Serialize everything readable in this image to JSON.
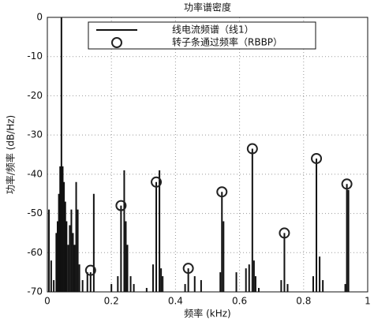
{
  "chart_data": {
    "type": "stem",
    "title": "功率谱密度",
    "xlabel": "频率 (kHz)",
    "ylabel": "功率/频率 (dB/Hz)",
    "xlim": [
      0,
      1
    ],
    "xticks": [
      0,
      0.2,
      0.4,
      0.6,
      0.8,
      1
    ],
    "ylim": [
      -70,
      0
    ],
    "yticks": [
      0,
      -10,
      -20,
      -30,
      -40,
      -50,
      -60,
      -70
    ],
    "grid": true,
    "series": [
      {
        "name": "线电流频谱（线1）",
        "color": "#111111",
        "x": [
          0.005,
          0.012,
          0.02,
          0.028,
          0.032,
          0.036,
          0.04,
          0.044,
          0.048,
          0.052,
          0.056,
          0.06,
          0.065,
          0.07,
          0.075,
          0.08,
          0.085,
          0.09,
          0.095,
          0.1,
          0.11,
          0.125,
          0.135,
          0.145,
          0.2,
          0.22,
          0.23,
          0.24,
          0.245,
          0.25,
          0.26,
          0.27,
          0.31,
          0.33,
          0.34,
          0.35,
          0.355,
          0.36,
          0.43,
          0.44,
          0.46,
          0.48,
          0.54,
          0.545,
          0.55,
          0.59,
          0.62,
          0.63,
          0.64,
          0.645,
          0.65,
          0.66,
          0.73,
          0.74,
          0.75,
          0.83,
          0.84,
          0.85,
          0.86,
          0.93,
          0.935,
          0.94
        ],
        "values": [
          -49,
          -62,
          -67,
          -55,
          -52,
          -45,
          -38,
          0,
          -38,
          -42,
          -47,
          -52,
          -58,
          -53,
          -49,
          -55,
          -58,
          -42,
          -49,
          -63,
          -67,
          -65,
          -65,
          -45,
          -68,
          -66,
          -48,
          -39,
          -52,
          -58,
          -66,
          -68,
          -69,
          -63,
          -42,
          -39,
          -64,
          -66,
          -68,
          -64,
          -66,
          -67,
          -65,
          -44.5,
          -52,
          -65,
          -64,
          -63,
          -33.5,
          -62,
          -66,
          -69,
          -67,
          -55,
          -68,
          -66,
          -36,
          -61,
          -67,
          -68,
          -42.5,
          -44
        ]
      },
      {
        "name": "转子条通过频率（RBBP）",
        "color": "#222222",
        "marker": "circle",
        "x": [
          0.135,
          0.23,
          0.34,
          0.44,
          0.545,
          0.64,
          0.74,
          0.84,
          0.935
        ],
        "values": [
          -64.5,
          -48,
          -42,
          -64,
          -44.5,
          -33.5,
          -55,
          -36,
          -42.5
        ]
      }
    ]
  }
}
